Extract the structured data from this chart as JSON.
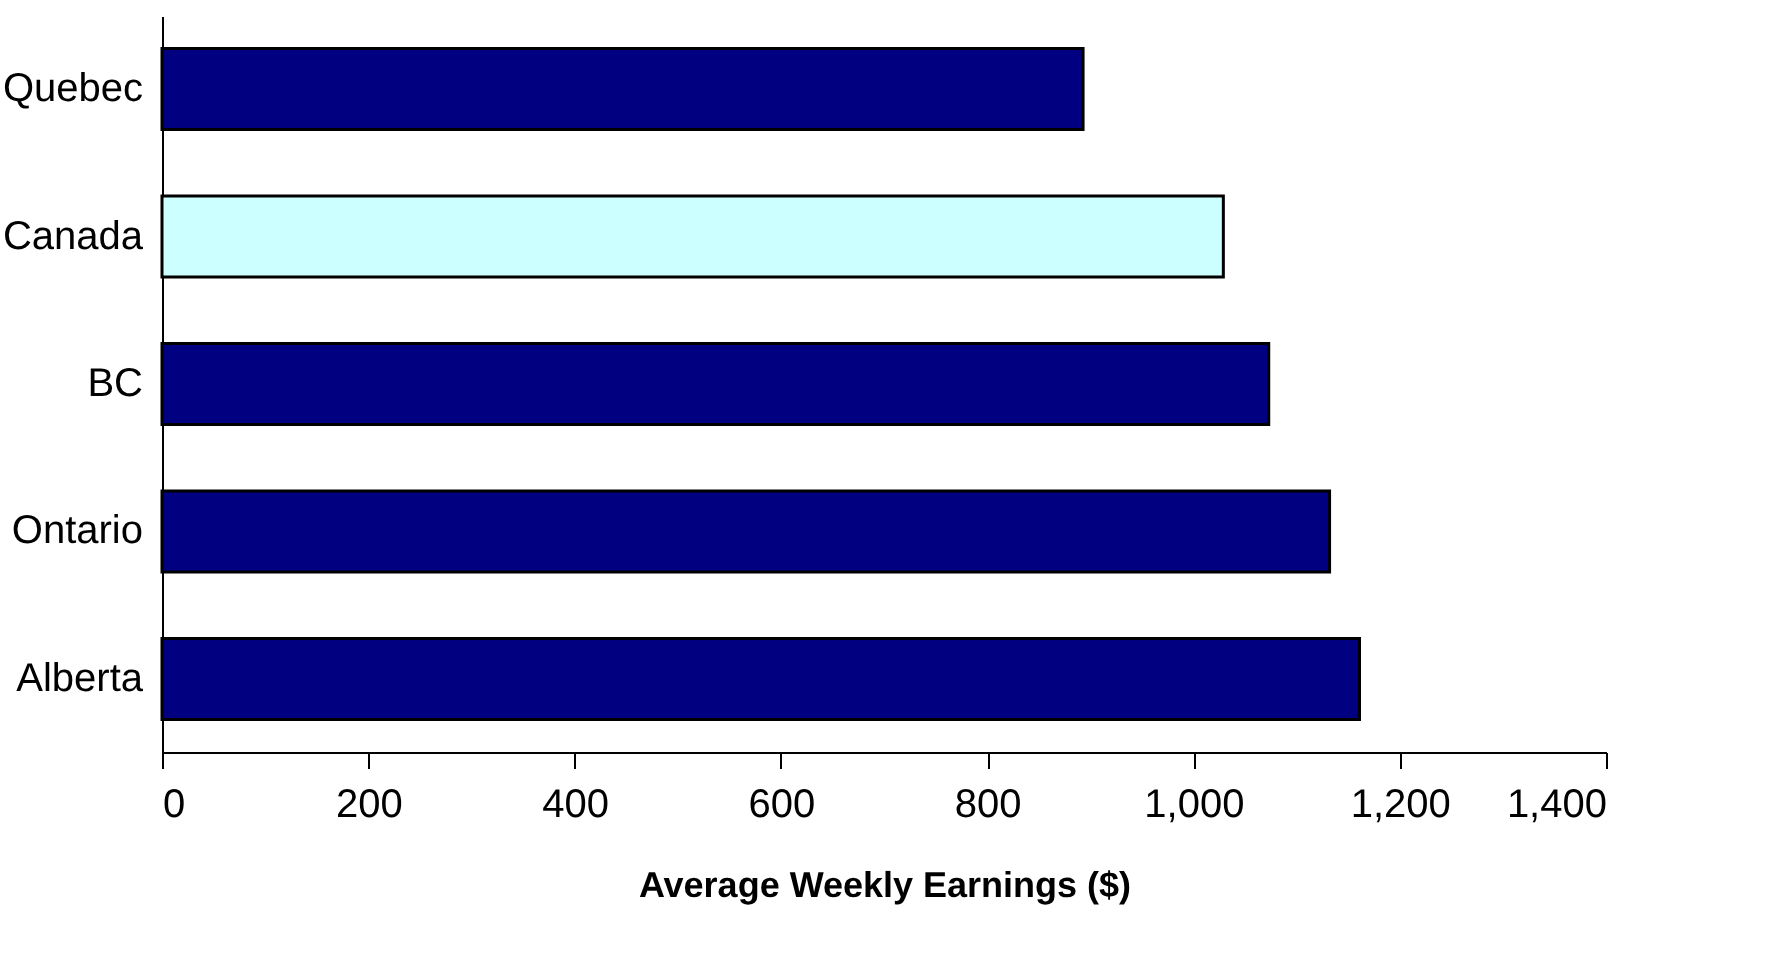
{
  "chart_data": {
    "type": "bar",
    "orientation": "horizontal",
    "xlabel": "Average Weekly Earnings ($)",
    "categories": [
      "Quebec",
      "Canada",
      "BC",
      "Ontario",
      "Alberta"
    ],
    "values": [
      893,
      1029,
      1073,
      1132,
      1161
    ],
    "colors": [
      "#000080",
      "#ccffff",
      "#000080",
      "#000080",
      "#000080"
    ],
    "xlim": [
      0,
      1400
    ],
    "xticks": [
      0,
      {
        "value": 200,
        "label": "200"
      },
      {
        "value": 400,
        "label": "400"
      },
      {
        "value": 600,
        "label": "600"
      },
      {
        "value": 800,
        "label": "800"
      },
      {
        "value": 1000,
        "label": "1,000"
      },
      {
        "value": 1200,
        "label": "1,200"
      },
      {
        "value": 1400,
        "label": "1,400"
      }
    ],
    "grid": false
  }
}
